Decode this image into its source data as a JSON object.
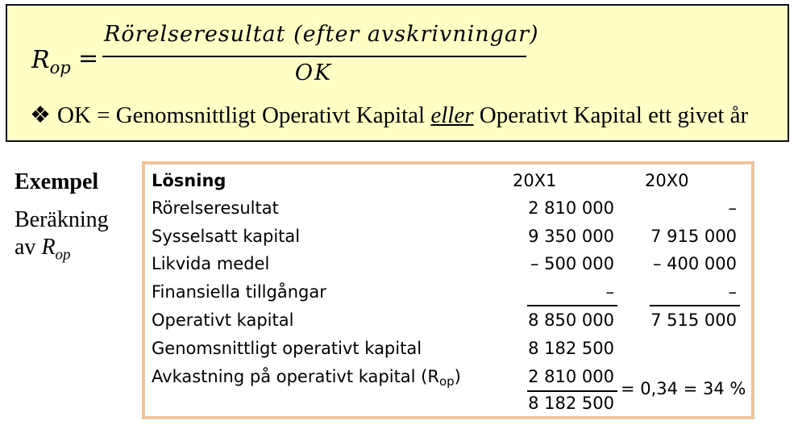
{
  "formula": {
    "symbol": "R",
    "symbol_sub": "op",
    "equals": "=",
    "numerator": "Rörelseresultat (efter avskrivningar)",
    "denominator": "OK"
  },
  "note": {
    "bullet": "❖",
    "text_before": "OK = Genomsnittligt Operativt Kapital ",
    "emphasis": "eller",
    "text_after": " Operativt Kapital ett givet år"
  },
  "example": {
    "title": "Exempel",
    "line1": "Beräkning",
    "line2_prefix": "av ",
    "line2_symbol": "R",
    "line2_sub": "op"
  },
  "solution": {
    "header_label": "Lösning",
    "col_20x1": "20X1",
    "col_20x0": "20X0",
    "rows": [
      {
        "label": "Rörelseresultat",
        "v1": "2 810 000",
        "v0": "–"
      },
      {
        "label": "Sysselsatt kapital",
        "v1": "9 350 000",
        "v0": "7 915 000"
      },
      {
        "label": "Likvida medel",
        "v1": "– 500 000",
        "v0": "– 400 000"
      },
      {
        "label": "Finansiella tillgångar",
        "v1": "–",
        "v0": "–"
      },
      {
        "label": "Operativt kapital",
        "v1": "8 850 000",
        "v0": "7 515 000"
      },
      {
        "label": "Genomsnittligt operativt kapital",
        "v1": "8 182 500",
        "v0": ""
      }
    ],
    "rop_label_prefix": "Avkastning på operativt kapital (R",
    "rop_label_sub": "op",
    "rop_label_suffix": ")",
    "rop_numerator": "2 810 000",
    "rop_denominator": "8 182 500",
    "rop_result": "= 0,34 = 34 %"
  }
}
